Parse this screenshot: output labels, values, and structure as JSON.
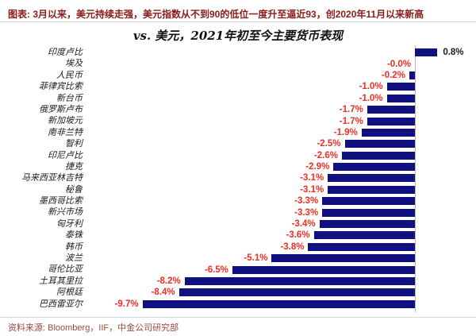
{
  "header": {
    "caption": "图表: 3月以来，美元持续走强，美元指数从不到90的低位一度升至逼近93，创2020年11月以来新高"
  },
  "chart_data": {
    "type": "bar",
    "orientation": "horizontal",
    "title": "vs. 美元，2021年初至今主要货币表现",
    "categories": [
      "印度卢比",
      "埃及",
      "人民币",
      "菲律宾比索",
      "新台币",
      "俄罗斯卢布",
      "新加坡元",
      "南非兰特",
      "智利",
      "印尼卢比",
      "捷克",
      "马来西亚林吉特",
      "秘鲁",
      "墨西哥比索",
      "新兴市场",
      "匈牙利",
      "泰铢",
      "韩币",
      "波兰",
      "哥伦比亚",
      "土耳其里拉",
      "阿根廷",
      "巴西雷亚尔"
    ],
    "values": [
      0.8,
      -0.0,
      -0.2,
      -1.0,
      -1.0,
      -1.7,
      -1.7,
      -1.9,
      -2.5,
      -2.6,
      -2.9,
      -3.1,
      -3.1,
      -3.3,
      -3.3,
      -3.4,
      -3.6,
      -3.8,
      -5.1,
      -6.5,
      -8.2,
      -8.4,
      -9.7
    ],
    "value_labels": [
      "0.8%",
      "-0.0%",
      "-0.2%",
      "-1.0%",
      "-1.0%",
      "-1.7%",
      "-1.7%",
      "-1.9%",
      "-2.5%",
      "-2.6%",
      "-2.9%",
      "-3.1%",
      "-3.1%",
      "-3.3%",
      "-3.3%",
      "-3.4%",
      "-3.6%",
      "-3.8%",
      "-5.1%",
      "-6.5%",
      "-8.2%",
      "-8.4%",
      "-9.7%"
    ],
    "unit": "%",
    "xlabel": "",
    "ylabel": "",
    "xlim": [
      -10.5,
      1.3
    ],
    "grid": false,
    "legend": "none",
    "zero_axis_line": true,
    "colors": {
      "bar": "#101080",
      "negative_value_label": "#ee2d24",
      "positive_value_label": "#1a1a1a",
      "axis_line": "#b9b9b9"
    }
  },
  "footer": {
    "source": "资料来源: Bloomberg，IIF，中金公司研究部"
  }
}
